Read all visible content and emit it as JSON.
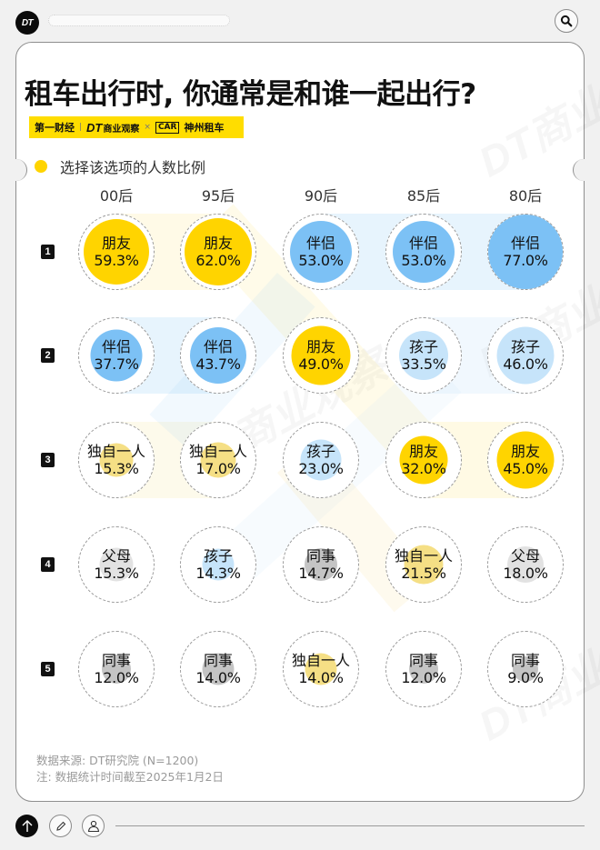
{
  "topbar": {
    "logo_text": "DT",
    "search_icon": "search-icon"
  },
  "header": {
    "title": "租车出行时, 你通常是和谁一起出行?",
    "brands": {
      "first": "第一财经",
      "dt": "DT",
      "dt_name": "商业观察",
      "times": "×",
      "car_mark": "CAR",
      "car_name": "神州租车"
    },
    "legend_label": "选择该选项的人数比例"
  },
  "colors": {
    "friend": "#ffd400",
    "partner": "#7cc1f5",
    "child": "#c6e4fa",
    "alone": "#f5df85",
    "parents": "#e2e2e2",
    "coworker": "#c4c4c4",
    "badge": "#111111"
  },
  "chart_data": {
    "type": "table",
    "title": "租车出行时, 你通常是和谁一起出行?",
    "subtitle": "选择该选项的人数比例",
    "categories": [
      "00后",
      "95后",
      "90后",
      "85后",
      "80后"
    ],
    "ranks": [
      "1",
      "2",
      "3",
      "4",
      "5"
    ],
    "rows": [
      [
        {
          "label": "朋友",
          "value": "59.3%",
          "pct": 59.3,
          "cat": "friend"
        },
        {
          "label": "朋友",
          "value": "62.0%",
          "pct": 62.0,
          "cat": "friend"
        },
        {
          "label": "伴侣",
          "value": "53.0%",
          "pct": 53.0,
          "cat": "partner"
        },
        {
          "label": "伴侣",
          "value": "53.0%",
          "pct": 53.0,
          "cat": "partner"
        },
        {
          "label": "伴侣",
          "value": "77.0%",
          "pct": 77.0,
          "cat": "partner"
        }
      ],
      [
        {
          "label": "伴侣",
          "value": "37.7%",
          "pct": 37.7,
          "cat": "partner"
        },
        {
          "label": "伴侣",
          "value": "43.7%",
          "pct": 43.7,
          "cat": "partner"
        },
        {
          "label": "朋友",
          "value": "49.0%",
          "pct": 49.0,
          "cat": "friend"
        },
        {
          "label": "孩子",
          "value": "33.5%",
          "pct": 33.5,
          "cat": "child"
        },
        {
          "label": "孩子",
          "value": "46.0%",
          "pct": 46.0,
          "cat": "child"
        }
      ],
      [
        {
          "label": "独自一人",
          "value": "15.3%",
          "pct": 15.3,
          "cat": "alone"
        },
        {
          "label": "独自一人",
          "value": "17.0%",
          "pct": 17.0,
          "cat": "alone"
        },
        {
          "label": "孩子",
          "value": "23.0%",
          "pct": 23.0,
          "cat": "child"
        },
        {
          "label": "朋友",
          "value": "32.0%",
          "pct": 32.0,
          "cat": "friend"
        },
        {
          "label": "朋友",
          "value": "45.0%",
          "pct": 45.0,
          "cat": "friend"
        }
      ],
      [
        {
          "label": "父母",
          "value": "15.3%",
          "pct": 15.3,
          "cat": "parents"
        },
        {
          "label": "孩子",
          "value": "14.3%",
          "pct": 14.3,
          "cat": "child"
        },
        {
          "label": "同事",
          "value": "14.7%",
          "pct": 14.7,
          "cat": "coworker"
        },
        {
          "label": "独自一人",
          "value": "21.5%",
          "pct": 21.5,
          "cat": "alone"
        },
        {
          "label": "父母",
          "value": "18.0%",
          "pct": 18.0,
          "cat": "parents"
        }
      ],
      [
        {
          "label": "同事",
          "value": "12.0%",
          "pct": 12.0,
          "cat": "coworker"
        },
        {
          "label": "同事",
          "value": "14.0%",
          "pct": 14.0,
          "cat": "coworker"
        },
        {
          "label": "独自一人",
          "value": "14.0%",
          "pct": 14.0,
          "cat": "alone"
        },
        {
          "label": "同事",
          "value": "12.0%",
          "pct": 12.0,
          "cat": "coworker"
        },
        {
          "label": "同事",
          "value": "9.0%",
          "pct": 9.0,
          "cat": "coworker"
        }
      ]
    ],
    "legend": [
      "选择该选项的人数比例"
    ]
  },
  "footer": {
    "source": "数据来源: DT研究院 (N=1200)",
    "note": "注: 数据统计时间截至2025年1月2日"
  },
  "toolbar": {
    "icons": [
      "arrow-up-icon",
      "pencil-icon",
      "user-icon"
    ]
  }
}
